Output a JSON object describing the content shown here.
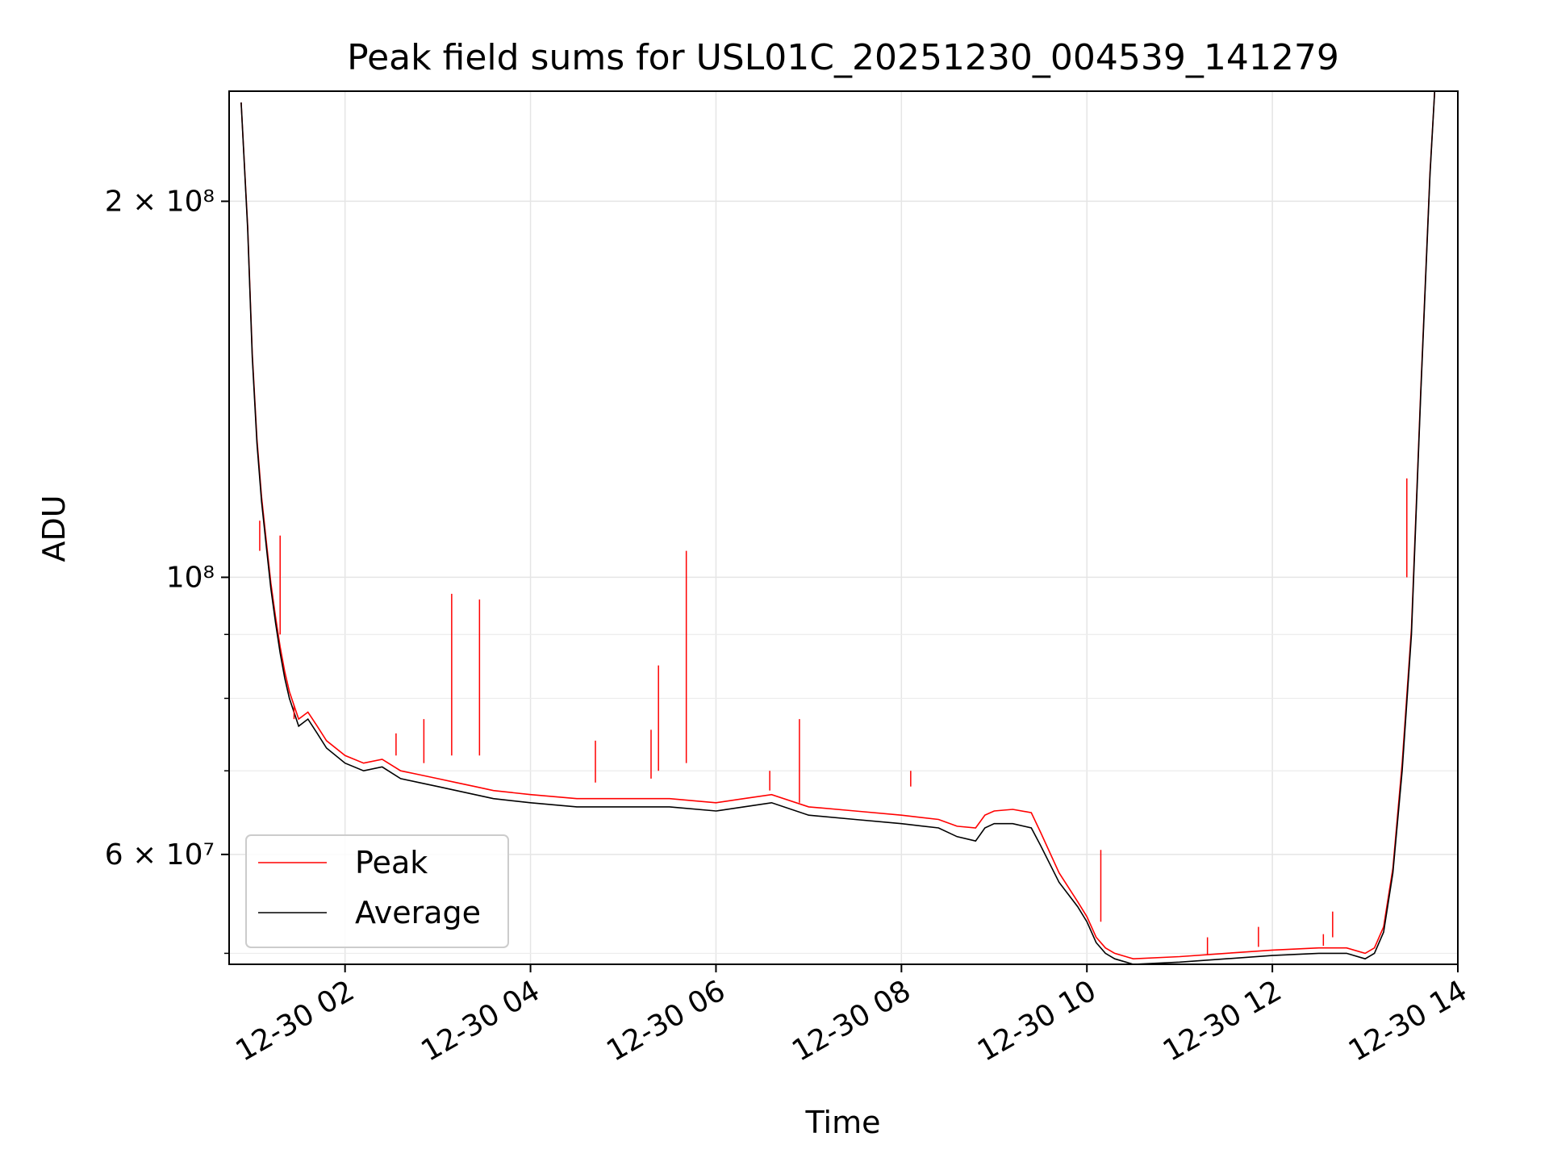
{
  "chart_data": {
    "type": "line",
    "title": "Peak field sums for USL01C_20251230_004539_141279",
    "xlabel": "Time",
    "ylabel": "ADU",
    "yscale": "log",
    "ylim": [
      49000000,
      245000000
    ],
    "xlim_hours": [
      0.75,
      14.0
    ],
    "grid": true,
    "legend": {
      "placement": "lower-left",
      "entries": [
        {
          "name": "Peak",
          "color": "#ff0000"
        },
        {
          "name": "Average",
          "color": "#000000"
        }
      ]
    },
    "x_ticks": [
      {
        "hour": 2,
        "label": "12-30 02"
      },
      {
        "hour": 4,
        "label": "12-30 04"
      },
      {
        "hour": 6,
        "label": "12-30 06"
      },
      {
        "hour": 8,
        "label": "12-30 08"
      },
      {
        "hour": 10,
        "label": "12-30 10"
      },
      {
        "hour": 12,
        "label": "12-30 12"
      },
      {
        "hour": 14,
        "label": "12-30 14"
      }
    ],
    "y_major_ticks": [
      {
        "value": 60000000,
        "label": "6 × 10⁷"
      },
      {
        "value": 100000000,
        "label": "10⁸"
      },
      {
        "value": 200000000,
        "label": "2 × 10⁸"
      }
    ],
    "y_minor_ticks": [
      50000000,
      70000000,
      80000000,
      90000000
    ],
    "series": [
      {
        "name": "Average",
        "color": "#000000",
        "x_hours": [
          0.88,
          0.95,
          1.0,
          1.05,
          1.1,
          1.15,
          1.2,
          1.25,
          1.3,
          1.35,
          1.4,
          1.5,
          1.6,
          1.7,
          1.8,
          2.0,
          2.2,
          2.4,
          2.6,
          2.8,
          3.0,
          3.2,
          3.4,
          3.6,
          4.0,
          4.5,
          5.0,
          5.5,
          6.0,
          6.3,
          6.6,
          7.0,
          7.5,
          8.0,
          8.4,
          8.6,
          8.8,
          8.9,
          9.0,
          9.2,
          9.4,
          9.5,
          9.7,
          9.9,
          10.0,
          10.1,
          10.2,
          10.3,
          10.5,
          11.0,
          11.5,
          12.0,
          12.5,
          12.8,
          13.0,
          13.1,
          13.2,
          13.3,
          13.4,
          13.5,
          13.6,
          13.7,
          13.75
        ],
        "values": [
          240000000,
          190000000,
          150000000,
          128000000,
          115000000,
          106000000,
          98000000,
          92000000,
          87000000,
          83000000,
          80000000,
          76000000,
          77000000,
          75000000,
          73000000,
          71000000,
          70000000,
          70500000,
          69000000,
          68500000,
          68000000,
          67500000,
          67000000,
          66500000,
          66000000,
          65500000,
          65500000,
          65500000,
          65000000,
          65500000,
          66000000,
          64500000,
          64000000,
          63500000,
          63000000,
          62000000,
          61500000,
          63000000,
          63500000,
          63500000,
          63000000,
          61000000,
          57000000,
          54500000,
          53000000,
          51000000,
          50000000,
          49500000,
          49000000,
          49200000,
          49500000,
          49800000,
          50000000,
          50000000,
          49500000,
          50000000,
          52000000,
          58000000,
          70000000,
          90000000,
          140000000,
          210000000,
          245000000
        ]
      },
      {
        "name": "Peak",
        "color": "#ff0000",
        "x_hours": [
          0.88,
          0.95,
          1.0,
          1.05,
          1.1,
          1.15,
          1.2,
          1.25,
          1.3,
          1.35,
          1.4,
          1.5,
          1.6,
          1.7,
          1.8,
          2.0,
          2.2,
          2.4,
          2.6,
          2.8,
          3.0,
          3.2,
          3.4,
          3.6,
          4.0,
          4.5,
          5.0,
          5.5,
          6.0,
          6.3,
          6.6,
          7.0,
          7.5,
          8.0,
          8.4,
          8.6,
          8.8,
          8.9,
          9.0,
          9.2,
          9.4,
          9.5,
          9.7,
          9.9,
          10.0,
          10.1,
          10.2,
          10.3,
          10.5,
          11.0,
          11.5,
          12.0,
          12.5,
          12.8,
          13.0,
          13.1,
          13.2,
          13.3,
          13.4,
          13.5,
          13.6,
          13.7,
          13.75
        ],
        "values": [
          240000000,
          191000000,
          151000000,
          129000000,
          116000000,
          107000000,
          99000000,
          93000000,
          88000000,
          84000000,
          81000000,
          77000000,
          78000000,
          76000000,
          74000000,
          72000000,
          71000000,
          71500000,
          70000000,
          69500000,
          69000000,
          68500000,
          68000000,
          67500000,
          67000000,
          66500000,
          66500000,
          66500000,
          66000000,
          66500000,
          67000000,
          65500000,
          65000000,
          64500000,
          64000000,
          63200000,
          63000000,
          64500000,
          65000000,
          65200000,
          64800000,
          62500000,
          58000000,
          55000000,
          53500000,
          51500000,
          50500000,
          50000000,
          49500000,
          49700000,
          50000000,
          50300000,
          50500000,
          50500000,
          50000000,
          50500000,
          52500000,
          58500000,
          71000000,
          91000000,
          141000000,
          211000000,
          245000000
        ]
      }
    ],
    "spikes": [
      {
        "hour": 1.08,
        "peak": 111000000,
        "average": 105000000
      },
      {
        "hour": 1.3,
        "peak": 108000000,
        "average": 90000000
      },
      {
        "hour": 1.45,
        "peak": 79000000,
        "average": 77000000
      },
      {
        "hour": 2.55,
        "peak": 75000000,
        "average": 72000000
      },
      {
        "hour": 2.85,
        "peak": 77000000,
        "average": 71000000
      },
      {
        "hour": 3.15,
        "peak": 97000000,
        "average": 72000000
      },
      {
        "hour": 3.45,
        "peak": 96000000,
        "average": 72000000
      },
      {
        "hour": 4.7,
        "peak": 74000000,
        "average": 68500000
      },
      {
        "hour": 5.3,
        "peak": 75500000,
        "average": 69000000
      },
      {
        "hour": 5.38,
        "peak": 85000000,
        "average": 70000000
      },
      {
        "hour": 5.68,
        "peak": 105000000,
        "average": 71000000
      },
      {
        "hour": 6.58,
        "peak": 70000000,
        "average": 67500000
      },
      {
        "hour": 6.9,
        "peak": 77000000,
        "average": 66000000
      },
      {
        "hour": 8.1,
        "peak": 70000000,
        "average": 68000000
      },
      {
        "hour": 10.15,
        "peak": 60500000,
        "average": 53000000
      },
      {
        "hour": 11.3,
        "peak": 51500000,
        "average": 49900000
      },
      {
        "hour": 11.85,
        "peak": 52500000,
        "average": 50600000
      },
      {
        "hour": 12.55,
        "peak": 51800000,
        "average": 50700000
      },
      {
        "hour": 12.65,
        "peak": 54000000,
        "average": 51500000
      },
      {
        "hour": 13.45,
        "peak": 120000000,
        "average": 100000000
      }
    ]
  }
}
